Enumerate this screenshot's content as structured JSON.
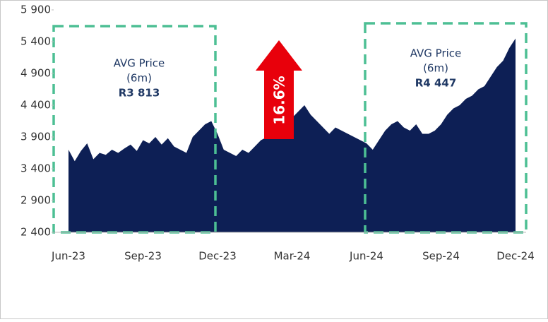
{
  "chart_data": {
    "type": "area",
    "color": "#0d1f55",
    "categories": [
      "Jun-23",
      null,
      null,
      null,
      null,
      null,
      null,
      null,
      null,
      null,
      null,
      null,
      "Sep-23",
      null,
      null,
      null,
      null,
      null,
      null,
      null,
      null,
      null,
      null,
      null,
      "Dec-23",
      null,
      null,
      null,
      null,
      null,
      null,
      null,
      null,
      null,
      null,
      null,
      "Mar-24",
      null,
      null,
      null,
      null,
      null,
      null,
      null,
      null,
      null,
      null,
      null,
      "Jun-24",
      null,
      null,
      null,
      null,
      null,
      null,
      null,
      null,
      null,
      null,
      null,
      "Sep-24",
      null,
      null,
      null,
      null,
      null,
      null,
      null,
      null,
      null,
      null,
      null,
      "Dec-24"
    ],
    "values": [
      3700,
      3520,
      3680,
      3800,
      3550,
      3650,
      3620,
      3700,
      3650,
      3720,
      3780,
      3680,
      3850,
      3800,
      3900,
      3780,
      3880,
      3750,
      3700,
      3650,
      3900,
      4000,
      4100,
      4150,
      3950,
      3700,
      3650,
      3600,
      3700,
      3650,
      3750,
      3850,
      3900,
      4050,
      4200,
      4250,
      4200,
      4300,
      4400,
      4250,
      4150,
      4050,
      3950,
      4050,
      4000,
      3950,
      3900,
      3850,
      3800,
      3700,
      3850,
      4000,
      4100,
      4150,
      4050,
      4000,
      4100,
      3950,
      3950,
      4000,
      4100,
      4250,
      4350,
      4400,
      4500,
      4550,
      4650,
      4700,
      4850,
      5000,
      5100,
      5300,
      5450
    ],
    "ylim": [
      2400,
      5900
    ],
    "yticks": [
      {
        "value": 2400,
        "label": "2 400"
      },
      {
        "value": 2900,
        "label": "2 900"
      },
      {
        "value": 3400,
        "label": "3 400"
      },
      {
        "value": 3900,
        "label": "3 900"
      },
      {
        "value": 4400,
        "label": "4 400"
      },
      {
        "value": 4900,
        "label": "4 900"
      },
      {
        "value": 5400,
        "label": "5 400"
      },
      {
        "value": 5900,
        "label": "5 900"
      }
    ],
    "annotations": [
      {
        "lines": [
          "AVG Price",
          "(6m)"
        ],
        "value": "R3 813"
      },
      {
        "lines": [
          "AVG Price",
          "(6m)"
        ],
        "value": "R4 447"
      }
    ],
    "change_label": "16.6%"
  }
}
